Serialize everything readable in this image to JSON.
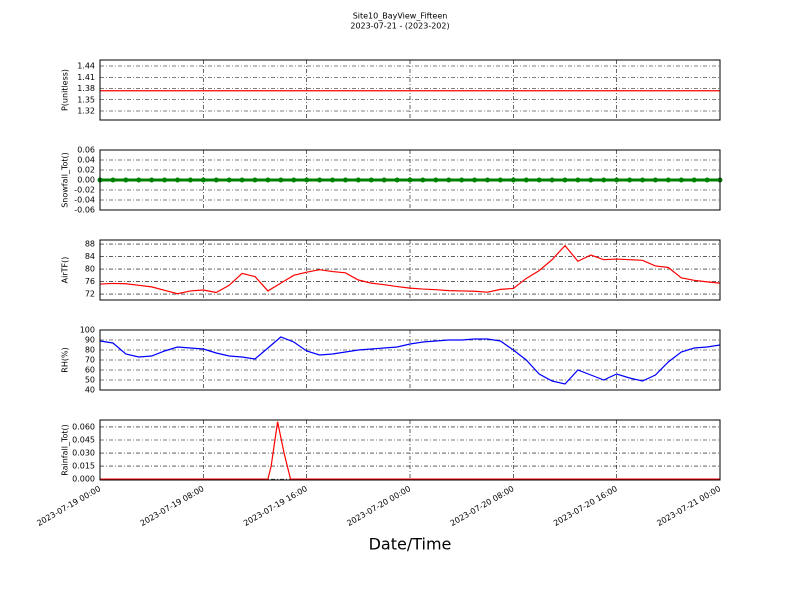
{
  "chart_data": [
    {
      "type": "line",
      "title": "Site10_BayView_Fifteen",
      "subtitle": "2023-07-21 - (2023-202)",
      "ylabel": "P(unitless)",
      "color": "#ff0000",
      "ylim": [
        1.296,
        1.456
      ],
      "yticks": [
        1.32,
        1.35,
        1.38,
        1.41,
        1.44
      ],
      "grid": true,
      "xlim": [
        "2023-07-19 00:00",
        "2023-07-21 00:00"
      ],
      "x": [
        "2023-07-19 00:00",
        "2023-07-19 04:00",
        "2023-07-19 08:00",
        "2023-07-19 12:00",
        "2023-07-19 16:00",
        "2023-07-19 20:00",
        "2023-07-20 00:00",
        "2023-07-20 04:00",
        "2023-07-20 08:00",
        "2023-07-20 12:00",
        "2023-07-20 16:00",
        "2023-07-20 20:00",
        "2023-07-21 00:00"
      ],
      "values": [
        1.374,
        1.374,
        1.374,
        1.374,
        1.374,
        1.374,
        1.374,
        1.374,
        1.374,
        1.374,
        1.374,
        1.374,
        1.374
      ]
    },
    {
      "type": "line",
      "ylabel": "Snowfall_Tot()",
      "color": "#008000",
      "marker": "o",
      "ylim": [
        -0.06,
        0.06
      ],
      "yticks": [
        -0.06,
        -0.04,
        -0.02,
        {
          "value": 0,
          "label": "0.00"
        },
        0.02,
        0.04,
        0.06
      ],
      "grid": true,
      "xlim": [
        "2023-07-19 00:00",
        "2023-07-21 00:00"
      ],
      "x": [
        "2023-07-19 00:00",
        "2023-07-19 01:00",
        "2023-07-19 02:00",
        "2023-07-19 03:00",
        "2023-07-19 04:00",
        "2023-07-19 05:00",
        "2023-07-19 06:00",
        "2023-07-19 07:00",
        "2023-07-19 08:00",
        "2023-07-19 09:00",
        "2023-07-19 10:00",
        "2023-07-19 11:00",
        "2023-07-19 12:00",
        "2023-07-19 13:00",
        "2023-07-19 14:00",
        "2023-07-19 15:00",
        "2023-07-19 16:00",
        "2023-07-19 17:00",
        "2023-07-19 18:00",
        "2023-07-19 19:00",
        "2023-07-19 20:00",
        "2023-07-19 21:00",
        "2023-07-19 22:00",
        "2023-07-19 23:00",
        "2023-07-20 00:00",
        "2023-07-20 01:00",
        "2023-07-20 02:00",
        "2023-07-20 03:00",
        "2023-07-20 04:00",
        "2023-07-20 05:00",
        "2023-07-20 06:00",
        "2023-07-20 07:00",
        "2023-07-20 08:00",
        "2023-07-20 09:00",
        "2023-07-20 10:00",
        "2023-07-20 11:00",
        "2023-07-20 12:00",
        "2023-07-20 13:00",
        "2023-07-20 14:00",
        "2023-07-20 15:00",
        "2023-07-20 16:00",
        "2023-07-20 17:00",
        "2023-07-20 18:00",
        "2023-07-20 19:00",
        "2023-07-20 20:00",
        "2023-07-20 21:00",
        "2023-07-20 22:00",
        "2023-07-20 23:00",
        "2023-07-21 00:00"
      ],
      "values": [
        0,
        0,
        0,
        0,
        0,
        0,
        0,
        0,
        0,
        0,
        0,
        0,
        0,
        0,
        0,
        0,
        0,
        0,
        0,
        0,
        0,
        0,
        0,
        0,
        0,
        0,
        0,
        0,
        0,
        0,
        0,
        0,
        0,
        0,
        0,
        0,
        0,
        0,
        0,
        0,
        0,
        0,
        0,
        0,
        0,
        0,
        0,
        0,
        0
      ]
    },
    {
      "type": "line",
      "ylabel": "AirTF()",
      "color": "#ff0000",
      "ylim": [
        70.1,
        89.3
      ],
      "yticks": [
        72,
        76,
        80,
        84,
        88
      ],
      "grid": true,
      "xlim": [
        "2023-07-19 00:00",
        "2023-07-21 00:00"
      ],
      "x": [
        "2023-07-19 00:00",
        "2023-07-19 01:00",
        "2023-07-19 02:00",
        "2023-07-19 03:00",
        "2023-07-19 04:00",
        "2023-07-19 05:00",
        "2023-07-19 06:00",
        "2023-07-19 07:00",
        "2023-07-19 08:00",
        "2023-07-19 09:00",
        "2023-07-19 10:00",
        "2023-07-19 11:00",
        "2023-07-19 12:00",
        "2023-07-19 13:00",
        "2023-07-19 14:00",
        "2023-07-19 15:00",
        "2023-07-19 16:00",
        "2023-07-19 17:00",
        "2023-07-19 18:00",
        "2023-07-19 19:00",
        "2023-07-19 20:00",
        "2023-07-19 21:00",
        "2023-07-19 22:00",
        "2023-07-19 23:00",
        "2023-07-20 00:00",
        "2023-07-20 01:00",
        "2023-07-20 02:00",
        "2023-07-20 03:00",
        "2023-07-20 04:00",
        "2023-07-20 05:00",
        "2023-07-20 06:00",
        "2023-07-20 07:00",
        "2023-07-20 08:00",
        "2023-07-20 09:00",
        "2023-07-20 10:00",
        "2023-07-20 11:00",
        "2023-07-20 12:00",
        "2023-07-20 13:00",
        "2023-07-20 14:00",
        "2023-07-20 15:00",
        "2023-07-20 16:00",
        "2023-07-20 17:00",
        "2023-07-20 18:00",
        "2023-07-20 19:00",
        "2023-07-20 20:00",
        "2023-07-20 21:00",
        "2023-07-20 22:00",
        "2023-07-20 23:00",
        "2023-07-21 00:00"
      ],
      "values": [
        75.2,
        75.4,
        75.3,
        74.8,
        74.3,
        73.2,
        72.1,
        73.0,
        73.3,
        72.5,
        74.8,
        78.6,
        77.6,
        73.0,
        75.5,
        78.0,
        79.0,
        79.8,
        79.2,
        78.8,
        76.5,
        75.5,
        75.0,
        74.4,
        73.9,
        73.6,
        73.4,
        73.1,
        73.0,
        72.9,
        72.6,
        73.5,
        73.8,
        77.0,
        79.5,
        83.0,
        87.5,
        82.5,
        84.5,
        83.0,
        83.2,
        83.0,
        82.8,
        81.0,
        80.5,
        77.2,
        76.4,
        75.9,
        75.5
      ]
    },
    {
      "type": "line",
      "ylabel": "RH(%)",
      "color": "#0000ff",
      "ylim": [
        40,
        100
      ],
      "yticks": [
        40,
        50,
        60,
        70,
        80,
        90,
        100
      ],
      "grid": true,
      "xlim": [
        "2023-07-19 00:00",
        "2023-07-21 00:00"
      ],
      "x": [
        "2023-07-19 00:00",
        "2023-07-19 01:00",
        "2023-07-19 02:00",
        "2023-07-19 03:00",
        "2023-07-19 04:00",
        "2023-07-19 05:00",
        "2023-07-19 06:00",
        "2023-07-19 07:00",
        "2023-07-19 08:00",
        "2023-07-19 09:00",
        "2023-07-19 10:00",
        "2023-07-19 11:00",
        "2023-07-19 12:00",
        "2023-07-19 13:00",
        "2023-07-19 14:00",
        "2023-07-19 15:00",
        "2023-07-19 16:00",
        "2023-07-19 17:00",
        "2023-07-19 18:00",
        "2023-07-19 19:00",
        "2023-07-19 20:00",
        "2023-07-19 21:00",
        "2023-07-19 22:00",
        "2023-07-19 23:00",
        "2023-07-20 00:00",
        "2023-07-20 01:00",
        "2023-07-20 02:00",
        "2023-07-20 03:00",
        "2023-07-20 04:00",
        "2023-07-20 05:00",
        "2023-07-20 06:00",
        "2023-07-20 07:00",
        "2023-07-20 08:00",
        "2023-07-20 09:00",
        "2023-07-20 10:00",
        "2023-07-20 11:00",
        "2023-07-20 12:00",
        "2023-07-20 13:00",
        "2023-07-20 14:00",
        "2023-07-20 15:00",
        "2023-07-20 16:00",
        "2023-07-20 17:00",
        "2023-07-20 18:00",
        "2023-07-20 19:00",
        "2023-07-20 20:00",
        "2023-07-20 21:00",
        "2023-07-20 22:00",
        "2023-07-20 23:00",
        "2023-07-21 00:00"
      ],
      "values": [
        89,
        87,
        76,
        73,
        74,
        79,
        83,
        82,
        81,
        77,
        74,
        73,
        71,
        82,
        93,
        88,
        79,
        75,
        76,
        78,
        80,
        81,
        82,
        83,
        86,
        88,
        89,
        90,
        90,
        91,
        91,
        89,
        80,
        70,
        56,
        49,
        46,
        60,
        55,
        50,
        56,
        52,
        49,
        55,
        68,
        78,
        82,
        83,
        85
      ]
    },
    {
      "type": "line",
      "ylabel": "Rainfall_Tot()",
      "xlabel": "Date/Time",
      "color": "#ff0000",
      "ylim": [
        -0.001,
        0.068
      ],
      "yticks": [
        {
          "value": 0,
          "label": "0.000"
        },
        0.015,
        {
          "value": 0.03,
          "label": "0.030"
        },
        0.045,
        {
          "value": 0.06,
          "label": "0.060"
        }
      ],
      "grid": true,
      "xlim": [
        "2023-07-19 00:00",
        "2023-07-21 00:00"
      ],
      "xticks": [
        "2023-07-19 00:00",
        "2023-07-19 08:00",
        "2023-07-19 16:00",
        "2023-07-20 00:00",
        "2023-07-20 08:00",
        "2023-07-20 16:00",
        "2023-07-21 00:00"
      ],
      "x": [
        "2023-07-19 00:00",
        "2023-07-19 13:00",
        "2023-07-19 13:15",
        "2023-07-19 13:45",
        "2023-07-19 14:15",
        "2023-07-19 14:45",
        "2023-07-21 00:00"
      ],
      "values": [
        0,
        0,
        0.015,
        0.066,
        0.03,
        0,
        0
      ]
    }
  ]
}
